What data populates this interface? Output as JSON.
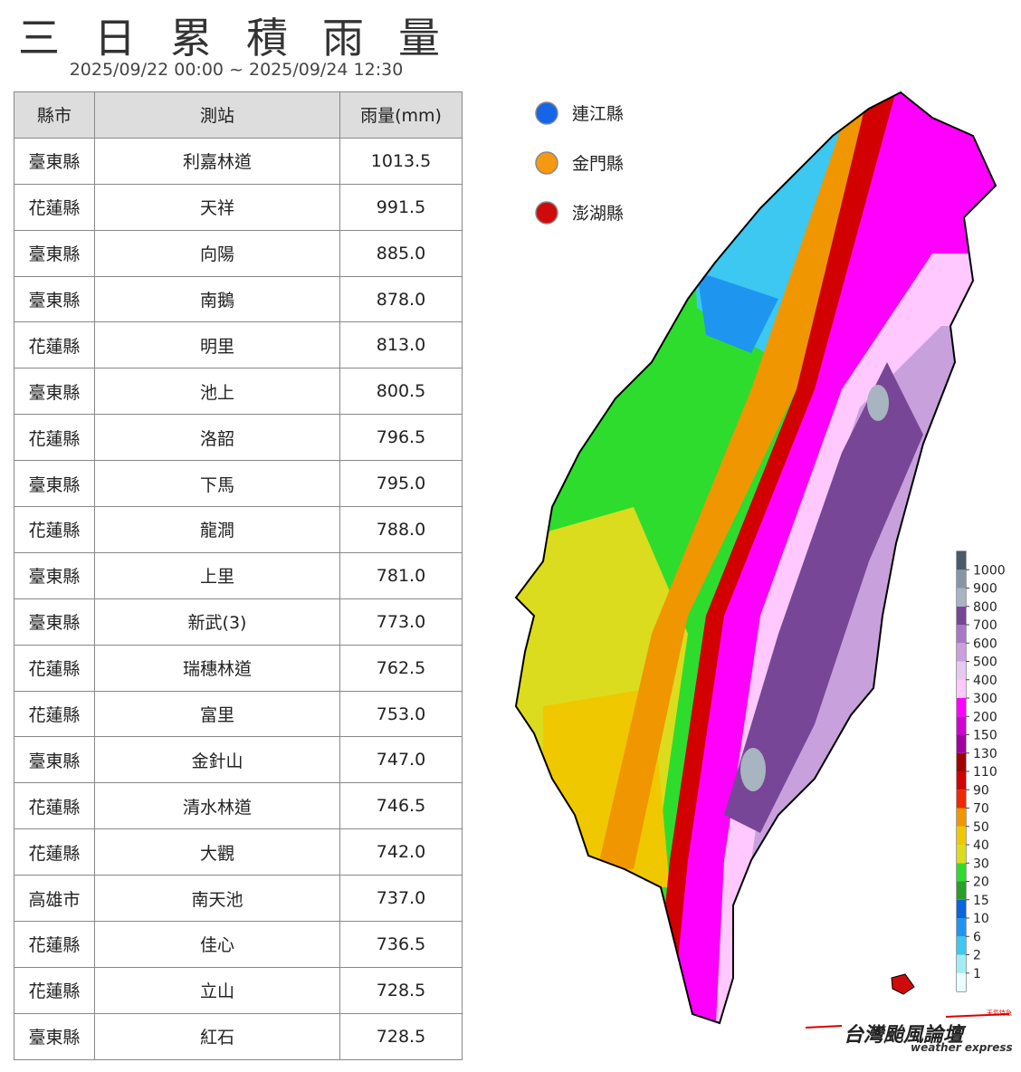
{
  "header": {
    "title": "三日累積雨量",
    "subtitle": "2025/09/22 00:00 ~ 2025/09/24 12:30"
  },
  "table": {
    "columns": [
      "縣市",
      "測站",
      "雨量(mm)"
    ],
    "rows": [
      [
        "臺東縣",
        "利嘉林道",
        "1013.5"
      ],
      [
        "花蓮縣",
        "天祥",
        "991.5"
      ],
      [
        "臺東縣",
        "向陽",
        "885.0"
      ],
      [
        "臺東縣",
        "南鵝",
        "878.0"
      ],
      [
        "花蓮縣",
        "明里",
        "813.0"
      ],
      [
        "臺東縣",
        "池上",
        "800.5"
      ],
      [
        "花蓮縣",
        "洛韶",
        "796.5"
      ],
      [
        "臺東縣",
        "下馬",
        "795.0"
      ],
      [
        "花蓮縣",
        "龍澗",
        "788.0"
      ],
      [
        "臺東縣",
        "上里",
        "781.0"
      ],
      [
        "臺東縣",
        "新武(3)",
        "773.0"
      ],
      [
        "花蓮縣",
        "瑞穗林道",
        "762.5"
      ],
      [
        "花蓮縣",
        "富里",
        "753.0"
      ],
      [
        "臺東縣",
        "金針山",
        "747.0"
      ],
      [
        "花蓮縣",
        "清水林道",
        "746.5"
      ],
      [
        "花蓮縣",
        "大觀",
        "742.0"
      ],
      [
        "高雄市",
        "南天池",
        "737.0"
      ],
      [
        "花蓮縣",
        "佳心",
        "736.5"
      ],
      [
        "花蓮縣",
        "立山",
        "728.5"
      ],
      [
        "臺東縣",
        "紅石",
        "728.5"
      ]
    ]
  },
  "legend": [
    {
      "label": "連江縣",
      "color": "#1565e8"
    },
    {
      "label": "金門縣",
      "color": "#f59a10"
    },
    {
      "label": "澎湖縣",
      "color": "#d00a0a"
    }
  ],
  "colorbar": {
    "ticks": [
      1,
      2,
      6,
      10,
      15,
      20,
      30,
      40,
      50,
      70,
      90,
      110,
      130,
      150,
      200,
      300,
      400,
      500,
      600,
      700,
      800,
      900,
      1000
    ],
    "colors": [
      "#eaffff",
      "#a0eef5",
      "#3cc8f0",
      "#1e96f0",
      "#0a64dc",
      "#2a9e2a",
      "#2edc2e",
      "#dcdc1e",
      "#f0c800",
      "#f09600",
      "#f02800",
      "#d20000",
      "#a00000",
      "#a000a0",
      "#d200d2",
      "#ff00ff",
      "#ffc8ff",
      "#e6c8f0",
      "#c8a0dc",
      "#a878c8",
      "#784696",
      "#a8b4c0",
      "#8696a6",
      "#4a5a6a"
    ]
  },
  "logo": {
    "name": "台灣颱風論壇",
    "tagline": "weather express",
    "badge": "天氣特急"
  }
}
